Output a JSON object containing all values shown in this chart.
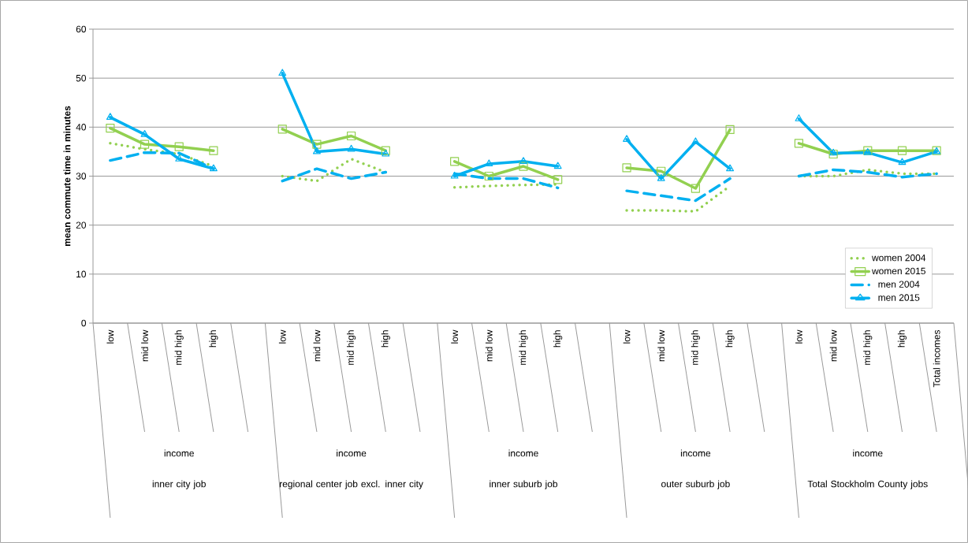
{
  "chart_data": {
    "type": "line",
    "ylabel": "mean commute time in minutes",
    "categories": [
      "low",
      "mid low",
      "mid high",
      "high",
      null,
      "low",
      "mid low",
      "mid high",
      "high",
      null,
      "low",
      "mid low",
      "mid high",
      "high",
      null,
      "low",
      "mid low",
      "mid high",
      "high",
      null,
      "low",
      "mid low",
      "mid high",
      "high",
      "Total incomes"
    ],
    "annotations": [
      "income",
      "inner city job",
      "income",
      "regional center job excl. inner city",
      "income",
      "inner suburb job",
      "income",
      "outer suburb job",
      "income",
      "Total Stockholm County jobs"
    ],
    "series": [
      {
        "name": "women 2004",
        "color": "#92d050",
        "line_style": "dotted",
        "marker": "none",
        "values": [
          36.7,
          35.5,
          34.5,
          32,
          null,
          30,
          29,
          33.5,
          30.8,
          null,
          27.7,
          28,
          28.2,
          28.3,
          null,
          23,
          23,
          22.8,
          28,
          null,
          30,
          30,
          31.3,
          30.5,
          30.5
        ]
      },
      {
        "name": "women 2015",
        "color": "#92d050",
        "line_style": "solid",
        "marker": "square",
        "values": [
          39.8,
          36.5,
          36,
          35.2,
          null,
          39.6,
          36.5,
          38.2,
          35.2,
          null,
          33,
          30,
          32,
          29.3,
          null,
          31.7,
          31,
          27.5,
          39.5,
          null,
          36.7,
          34.5,
          35.2,
          35.2,
          35.2
        ]
      },
      {
        "name": "men 2004",
        "color": "#00b0f0",
        "line_style": "dashed",
        "marker": "none",
        "values": [
          33.2,
          34.8,
          34.7,
          31.5,
          null,
          29,
          31.5,
          29.5,
          30.8,
          null,
          30.5,
          29.5,
          29.5,
          27.6,
          null,
          27,
          26,
          25,
          29.5,
          null,
          30,
          31.3,
          30.8,
          29.8,
          30.5
        ]
      },
      {
        "name": "men 2015",
        "color": "#00b0f0",
        "line_style": "solid",
        "marker": "triangle",
        "values": [
          42,
          38.5,
          33.5,
          31.5,
          null,
          51,
          35,
          35.5,
          34.5,
          null,
          30,
          32.5,
          33,
          32,
          null,
          37.5,
          29.5,
          37,
          31.5,
          null,
          41.7,
          34.7,
          34.8,
          32.8,
          35
        ]
      }
    ],
    "ylim": [
      0,
      60
    ],
    "yticks": [
      0,
      10,
      20,
      30,
      40,
      50,
      60
    ],
    "grid": "y",
    "legend": "bottom right"
  }
}
